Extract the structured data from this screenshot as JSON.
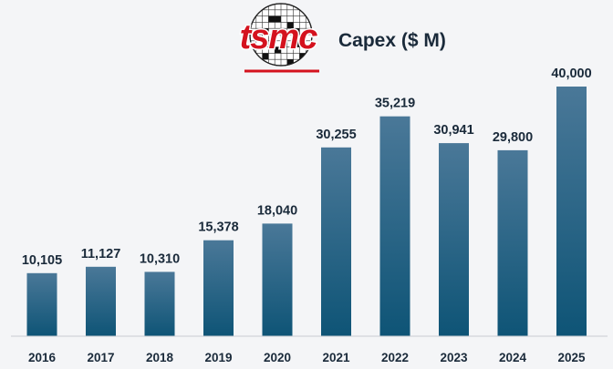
{
  "brand": {
    "logo_text": "tsmc",
    "logo_color": "#d4121e"
  },
  "chart_data": {
    "type": "bar",
    "title": "Capex ($ M)",
    "categories": [
      "2016",
      "2017",
      "2018",
      "2019",
      "2020",
      "2021",
      "2022",
      "2023",
      "2024",
      "2025"
    ],
    "values": [
      10105,
      11127,
      10310,
      15378,
      18040,
      30255,
      35219,
      30941,
      29800,
      40000
    ],
    "value_labels": [
      "10,105",
      "11,127",
      "10,310",
      "15,378",
      "18,040",
      "30,255",
      "35,219",
      "30,941",
      "29,800",
      "40,000"
    ],
    "xlabel": "",
    "ylabel": "",
    "ylim": [
      0,
      40000
    ],
    "grid": false,
    "colors": {
      "bar_top": "#4a7898",
      "bar_bottom": "#0e5476",
      "axis": "#c8ccd2",
      "text": "#1a2a3a"
    }
  }
}
